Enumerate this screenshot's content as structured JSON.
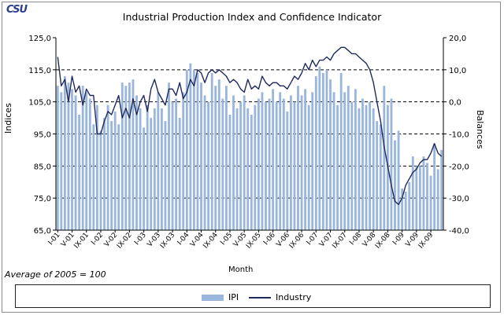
{
  "logo": "CSU",
  "chart_data": {
    "type": "bar+line",
    "title": "Industrial Production Index and Confidence Indicator",
    "xlabel": "Month",
    "ylabel_left": "Indices",
    "ylabel_right": "Balances",
    "note": "Average of 2005 = 100",
    "ylim_left": [
      65,
      125
    ],
    "ylim_right": [
      -40,
      20
    ],
    "yticks_left": [
      "125,0",
      "115,0",
      "105,0",
      "95,0",
      "85,0",
      "75,0",
      "65,0"
    ],
    "yticks_right": [
      "20,0",
      "10,0",
      "0,0",
      "-10,0",
      "-20,0",
      "-30,0",
      "-40,0"
    ],
    "x_tick_labels": [
      "I-01",
      "V-01",
      "IX-01",
      "I-02",
      "V-02",
      "IX-02",
      "I-03",
      "V-03",
      "IX-03",
      "I-04",
      "V-04",
      "IX-04",
      "I-05",
      "V-05",
      "IX-05",
      "I-06",
      "V-06",
      "IX-06",
      "I-07",
      "V-07",
      "IX-07",
      "I-08",
      "V-08",
      "IX-08",
      "I-09",
      "V-09",
      "IX-09"
    ],
    "series": [
      {
        "name": "IPI",
        "type": "bar",
        "axis": "left",
        "color": "#9ab6dc",
        "values": [
          110,
          108,
          113,
          111,
          109,
          107,
          101,
          110,
          108,
          106,
          98,
          104,
          96,
          100,
          104,
          99,
          102,
          98,
          111,
          110,
          111,
          112,
          107,
          103,
          97,
          104,
          100,
          103,
          108,
          103,
          99,
          111,
          105,
          106,
          100,
          108,
          115,
          117,
          115,
          114,
          111,
          107,
          105,
          114,
          110,
          112,
          106,
          110,
          101,
          107,
          103,
          105,
          107,
          103,
          101,
          104,
          106,
          108,
          105,
          106,
          109,
          105,
          108,
          106,
          102,
          107,
          105,
          110,
          107,
          109,
          104,
          108,
          113,
          116,
          114,
          115,
          112,
          108,
          104,
          114,
          108,
          110,
          105,
          109,
          103,
          106,
          104,
          105,
          103,
          99,
          98,
          110,
          104,
          106,
          93,
          96,
          78,
          77,
          80,
          88,
          85,
          85,
          88,
          86,
          82,
          92,
          84,
          90
        ]
      },
      {
        "name": "Industry",
        "type": "line",
        "axis": "right",
        "color": "#1f2a5c",
        "values": [
          14,
          5,
          7,
          0,
          8,
          3,
          5,
          -1,
          4,
          2,
          2,
          -10,
          -10,
          -6,
          -3,
          -4,
          -1,
          2,
          -5,
          -2,
          -5,
          1,
          -4,
          0,
          2,
          -3,
          4,
          7,
          3,
          1,
          -1,
          4,
          4,
          2,
          6,
          1,
          3,
          7,
          5,
          10,
          9,
          6,
          9,
          10,
          9,
          10,
          9,
          8,
          6,
          7,
          6,
          4,
          3,
          7,
          4,
          5,
          4,
          8,
          6,
          5,
          6,
          6,
          5,
          5,
          4,
          6,
          8,
          7,
          9,
          12,
          10,
          13,
          11,
          13,
          13,
          14,
          13,
          15,
          16,
          17,
          17,
          16,
          15,
          15,
          14,
          13,
          12,
          10,
          6,
          0,
          -6,
          -14,
          -20,
          -26,
          -31,
          -32,
          -30,
          -26,
          -24,
          -22,
          -21,
          -19,
          -18,
          -18,
          -16,
          -13,
          -16,
          -17
        ]
      }
    ],
    "legend": [
      "IPI",
      "Industry"
    ]
  }
}
